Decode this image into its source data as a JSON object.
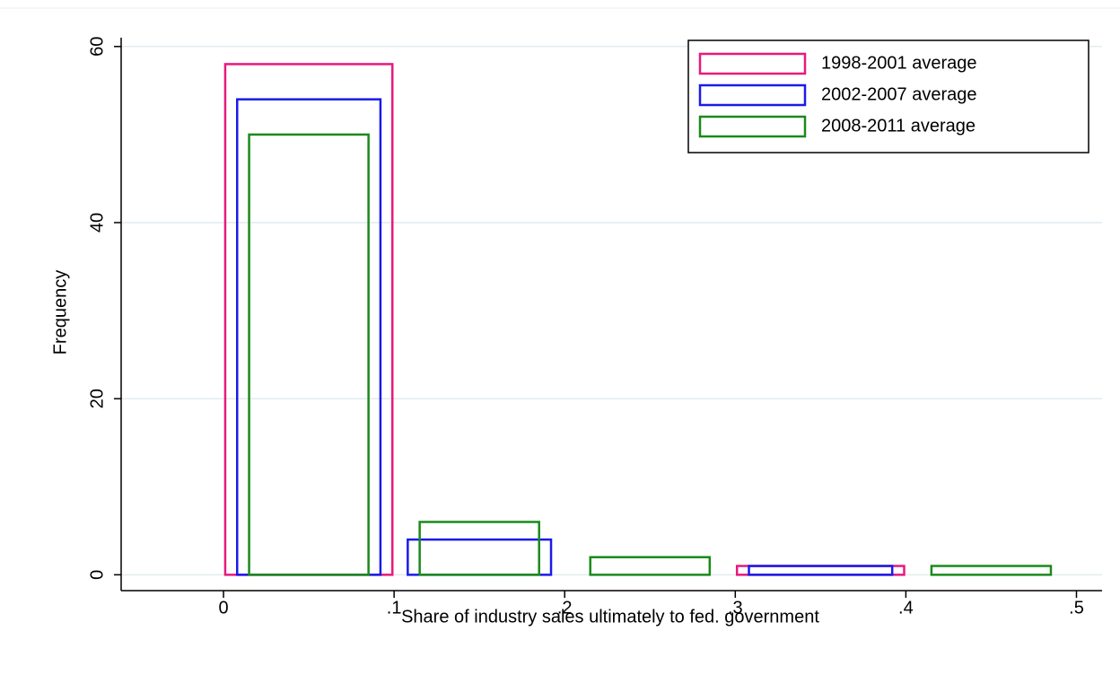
{
  "chart_data": {
    "type": "histogram",
    "xlabel": "Share of industry sales ultimately to fed. government",
    "ylabel": "Frequency",
    "bins": [
      0,
      0.1,
      0.2,
      0.3,
      0.4,
      0.5
    ],
    "series": [
      {
        "name": "1998-2001 average",
        "color": "#e8197d",
        "values": [
          58,
          0,
          0,
          1,
          0
        ]
      },
      {
        "name": "2002-2007 average",
        "color": "#1a1aeb",
        "values": [
          54,
          4,
          0,
          1,
          0
        ]
      },
      {
        "name": "2008-2011 average",
        "color": "#1a8a1a",
        "values": [
          50,
          6,
          2,
          0,
          1
        ]
      }
    ],
    "xlim": [
      -0.06,
      0.515
    ],
    "ylim": [
      -1.8,
      61
    ],
    "xticks": [
      0,
      {
        "value": 0.1,
        "label": ".1"
      },
      {
        "value": 0.2,
        "label": ".2"
      },
      {
        "value": 0.3,
        "label": ".3"
      },
      {
        "value": 0.4,
        "label": ".4"
      },
      {
        "value": 0.5,
        "label": ".5"
      }
    ],
    "yticks": [
      0,
      20,
      40,
      60
    ],
    "grid": true,
    "legend": "top-right"
  }
}
